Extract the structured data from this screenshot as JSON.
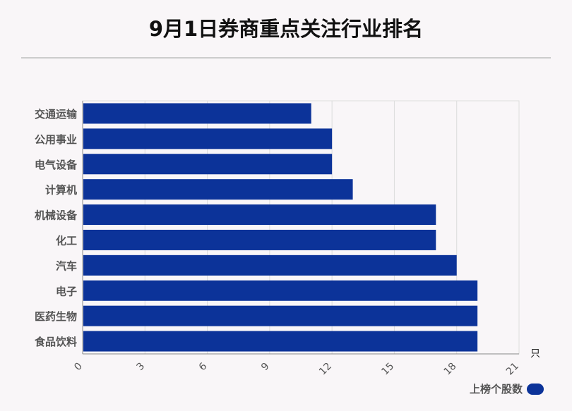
{
  "title": "9月1日券商重点关注行业排名",
  "chart_data": {
    "type": "bar",
    "orientation": "horizontal",
    "categories": [
      "交通运输",
      "公用事业",
      "电气设备",
      "计算机",
      "机械设备",
      "化工",
      "汽车",
      "电子",
      "医药生物",
      "食品饮料"
    ],
    "series": [
      {
        "name": "上榜个股数",
        "values": [
          11,
          12,
          12,
          13,
          17,
          17,
          18,
          19,
          19,
          19
        ]
      }
    ],
    "xlim": [
      0,
      21
    ],
    "xticks": [
      0,
      3,
      6,
      9,
      12,
      15,
      18,
      21
    ],
    "x_unit": "只",
    "grid": true,
    "legend_position": "bottom-right",
    "bar_color": "#0c3399"
  },
  "legend": {
    "label": "上榜个股数"
  }
}
